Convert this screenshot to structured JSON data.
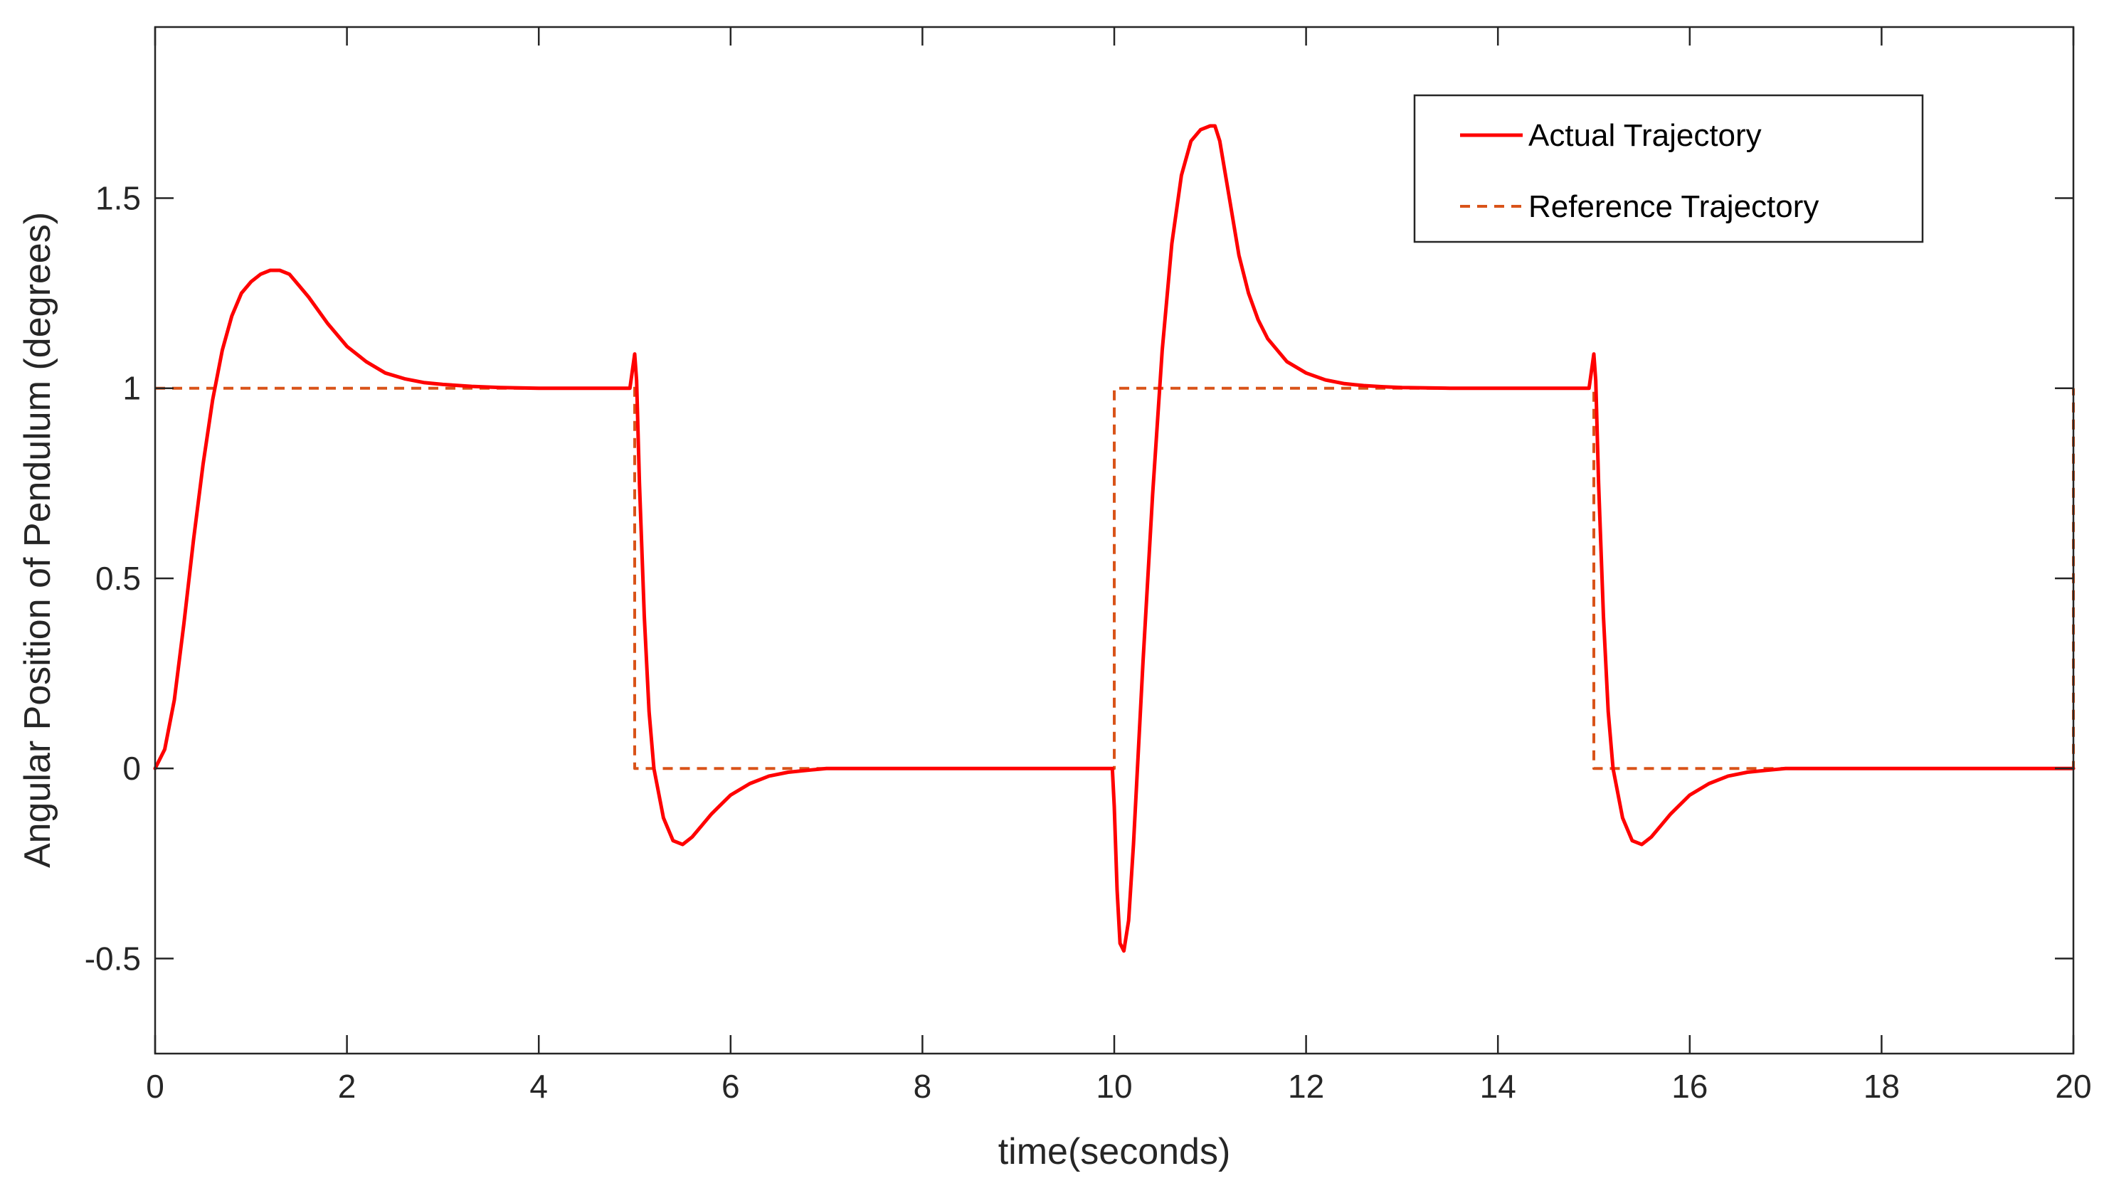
{
  "chart_data": {
    "type": "line",
    "title": "",
    "xlabel": "time(seconds)",
    "ylabel": "Angular Position of Pendulum (degrees)",
    "xlim": [
      0,
      20
    ],
    "ylim": [
      -0.75,
      1.95
    ],
    "xticks": [
      0,
      2,
      4,
      6,
      8,
      10,
      12,
      14,
      16,
      18,
      20
    ],
    "yticks": [
      -0.5,
      0,
      0.5,
      1,
      1.5
    ],
    "xtick_labels": [
      "0",
      "2",
      "4",
      "6",
      "8",
      "10",
      "12",
      "14",
      "16",
      "18",
      "20"
    ],
    "ytick_labels": [
      "-0.5",
      "0",
      "0.5",
      "1",
      "1.5"
    ],
    "grid": false,
    "legend": {
      "position": "top-right",
      "entries": [
        "Actual Trajectory",
        "Reference Trajectory"
      ]
    },
    "series": [
      {
        "name": "Actual Trajectory",
        "style": "solid",
        "color": "#ff0000",
        "x": [
          0,
          0.1,
          0.2,
          0.3,
          0.4,
          0.5,
          0.6,
          0.7,
          0.8,
          0.9,
          1.0,
          1.1,
          1.2,
          1.3,
          1.4,
          1.5,
          1.6,
          1.8,
          2.0,
          2.2,
          2.4,
          2.6,
          2.8,
          3.0,
          3.3,
          3.6,
          4.0,
          4.5,
          4.95,
          5.0,
          5.02,
          5.05,
          5.1,
          5.15,
          5.2,
          5.3,
          5.4,
          5.5,
          5.6,
          5.7,
          5.8,
          6.0,
          6.2,
          6.4,
          6.6,
          6.8,
          7.0,
          7.5,
          8.0,
          9.0,
          9.98,
          10.0,
          10.03,
          10.06,
          10.1,
          10.15,
          10.2,
          10.3,
          10.4,
          10.5,
          10.6,
          10.7,
          10.8,
          10.9,
          11.0,
          11.05,
          11.1,
          11.2,
          11.3,
          11.4,
          11.5,
          11.6,
          11.8,
          12.0,
          12.2,
          12.4,
          12.6,
          12.8,
          13.0,
          13.5,
          14.0,
          14.5,
          14.95,
          15.0,
          15.02,
          15.05,
          15.1,
          15.15,
          15.2,
          15.3,
          15.4,
          15.5,
          15.6,
          15.7,
          15.8,
          16.0,
          16.2,
          16.4,
          16.6,
          16.8,
          17.0,
          17.5,
          18.0,
          19.0,
          20.0
        ],
        "y": [
          0,
          0.05,
          0.18,
          0.38,
          0.6,
          0.8,
          0.97,
          1.1,
          1.19,
          1.25,
          1.28,
          1.3,
          1.31,
          1.31,
          1.3,
          1.27,
          1.24,
          1.17,
          1.11,
          1.07,
          1.04,
          1.025,
          1.015,
          1.01,
          1.005,
          1.002,
          1.0,
          1.0,
          1.0,
          1.09,
          1.02,
          0.75,
          0.4,
          0.15,
          0.0,
          -0.13,
          -0.19,
          -0.2,
          -0.18,
          -0.15,
          -0.12,
          -0.07,
          -0.04,
          -0.02,
          -0.01,
          -0.005,
          0.0,
          0.0,
          0.0,
          0.0,
          0.0,
          -0.1,
          -0.32,
          -0.46,
          -0.48,
          -0.4,
          -0.2,
          0.28,
          0.72,
          1.1,
          1.38,
          1.56,
          1.65,
          1.68,
          1.69,
          1.69,
          1.65,
          1.5,
          1.35,
          1.25,
          1.18,
          1.13,
          1.07,
          1.04,
          1.022,
          1.012,
          1.007,
          1.004,
          1.002,
          1.0,
          1.0,
          1.0,
          1.0,
          1.09,
          1.02,
          0.75,
          0.4,
          0.15,
          0.0,
          -0.13,
          -0.19,
          -0.2,
          -0.18,
          -0.15,
          -0.12,
          -0.07,
          -0.04,
          -0.02,
          -0.01,
          -0.005,
          0.0,
          0.0,
          0.0,
          0.0,
          0.0
        ]
      },
      {
        "name": "Reference Trajectory",
        "style": "dashed",
        "color": "#d95319",
        "x": [
          0,
          5,
          5,
          10,
          10,
          15,
          15,
          20,
          20
        ],
        "y": [
          1,
          1,
          0,
          0,
          1,
          1,
          0,
          0,
          1
        ]
      }
    ]
  }
}
